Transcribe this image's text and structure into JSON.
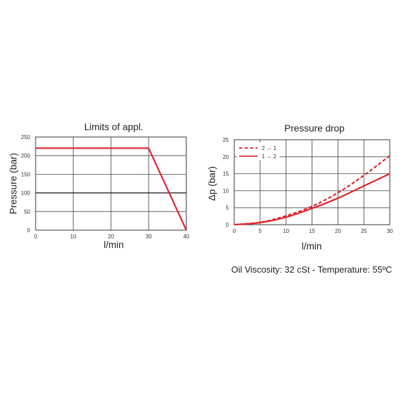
{
  "chart_data": [
    {
      "type": "line",
      "title": "Limits of appl.",
      "xlabel": "l/min",
      "ylabel": "Pressure (bar)",
      "xlim": [
        0,
        40
      ],
      "ylim": [
        0,
        250
      ],
      "xticks": [
        "0",
        "10",
        "20",
        "30",
        "40"
      ],
      "yticks": [
        "0",
        "50",
        "100",
        "150",
        "200",
        "250"
      ],
      "grid": true,
      "series": [
        {
          "color": "#e0232b",
          "dashed": false,
          "x": [
            0,
            30,
            40
          ],
          "y": [
            220,
            220,
            0
          ]
        }
      ]
    },
    {
      "type": "line",
      "title": "Pressure drop",
      "xlabel": "l/min",
      "ylabel": "Δp (bar)",
      "xlim": [
        0,
        30
      ],
      "ylim": [
        0,
        25
      ],
      "xticks": [
        "0",
        "5",
        "10",
        "15",
        "20",
        "25",
        "30"
      ],
      "yticks": [
        "0",
        "5",
        "10",
        "15",
        "20",
        "25"
      ],
      "grid": true,
      "legend_position": "top-left",
      "series": [
        {
          "name": "2 → 1",
          "color": "#e0232b",
          "dashed": true,
          "x": [
            0,
            5,
            10,
            15,
            20,
            25,
            30
          ],
          "y": [
            0,
            0.7,
            2.6,
            5.4,
            9.4,
            14.5,
            20.3
          ]
        },
        {
          "name": "1 → 2",
          "color": "#e0232b",
          "dashed": false,
          "x": [
            0,
            5,
            10,
            15,
            20,
            25,
            30
          ],
          "y": [
            0,
            0.6,
            2.2,
            4.8,
            7.8,
            11.4,
            15.0
          ]
        }
      ]
    }
  ],
  "footnote": "Oil Viscosity: 32 cSt - Temperature: 55ºC"
}
